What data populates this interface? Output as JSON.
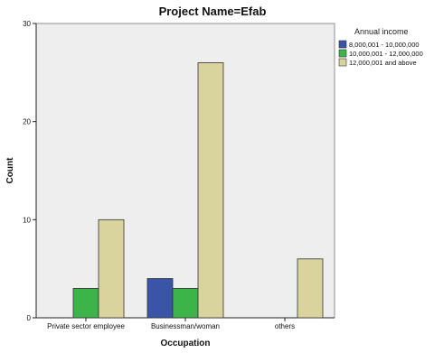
{
  "chart_data": {
    "type": "bar",
    "title": "Project Name=Efab",
    "xlabel": "Occupation",
    "ylabel": "Count",
    "categories": [
      "Private sector employee",
      "Businessman/woman",
      "others"
    ],
    "series": [
      {
        "name": "8,000,001 - 10,000,000",
        "color": "#3a54a8",
        "values": [
          0,
          4,
          0
        ]
      },
      {
        "name": "10,000,001 - 12,000,000",
        "color": "#3cb44a",
        "values": [
          3,
          3,
          0
        ]
      },
      {
        "name": "12,000,001 and above",
        "color": "#d9d39d",
        "values": [
          10,
          26,
          6
        ]
      }
    ],
    "ylim": [
      0,
      30
    ],
    "yticks": [
      0,
      10,
      20,
      30
    ],
    "legend": {
      "title": "Annual income",
      "position": "top-right"
    },
    "grid": false,
    "plot_background": "#eeeeee"
  }
}
